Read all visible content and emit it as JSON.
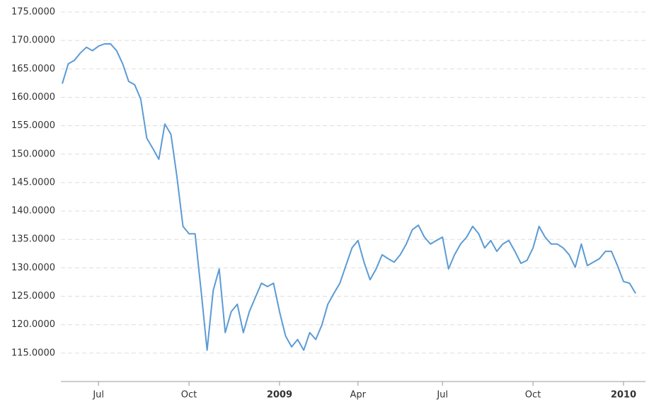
{
  "chart_data": {
    "type": "line",
    "categories": [
      null,
      null,
      null,
      null,
      null,
      null,
      "Jul",
      null,
      null,
      null,
      null,
      null,
      null,
      null,
      null,
      null,
      null,
      null,
      null,
      null,
      null,
      "Oct",
      null,
      null,
      null,
      null,
      null,
      null,
      null,
      null,
      null,
      null,
      null,
      null,
      null,
      null,
      "2009",
      null,
      null,
      null,
      null,
      null,
      null,
      null,
      null,
      null,
      null,
      null,
      null,
      "Apr",
      null,
      null,
      null,
      null,
      null,
      null,
      null,
      null,
      null,
      null,
      null,
      null,
      null,
      "Jul",
      null,
      null,
      null,
      null,
      null,
      null,
      null,
      null,
      null,
      null,
      null,
      null,
      null,
      null,
      "Oct",
      null,
      null,
      null,
      null,
      null,
      null,
      null,
      null,
      null,
      null,
      null,
      null,
      null,
      null,
      "2010",
      null,
      null
    ],
    "series": [
      {
        "color": "#5b9bd5",
        "values": [
          162.4,
          165.9,
          166.5,
          167.8,
          168.8,
          168.2,
          169,
          169.4,
          169.4,
          168.2,
          165.9,
          162.8,
          162.2,
          159.7,
          152.8,
          151,
          149.1,
          155.3,
          153.5,
          146,
          137.3,
          136,
          136,
          126,
          115.5,
          126,
          129.8,
          118.6,
          122.3,
          123.6,
          118.6,
          122.3,
          124.8,
          127.3,
          126.7,
          127.3,
          122.3,
          118,
          116.1,
          117.4,
          115.5,
          118.6,
          117.4,
          119.9,
          123.6,
          125.5,
          127.3,
          130.4,
          133.5,
          134.8,
          131,
          127.9,
          129.8,
          132.3,
          131.6,
          131,
          132.3,
          134.2,
          136.7,
          137.5,
          135.4,
          134.2,
          134.8,
          135.4,
          129.8,
          132.3,
          134.2,
          135.4,
          137.3,
          136,
          133.5,
          134.8,
          132.9,
          134.2,
          134.8,
          132.9,
          130.8,
          131.3,
          133.5,
          137.3,
          135.4,
          134.2,
          134.2,
          133.5,
          132.3,
          130.1,
          134.2,
          130.4,
          131,
          131.6,
          132.9,
          132.9,
          130.4,
          127.6,
          127.3,
          125.5
        ]
      }
    ],
    "ylim": [
      110,
      175
    ],
    "yticks": [
      {
        "value": 115,
        "label": "115.0000"
      },
      {
        "value": 120,
        "label": "120.0000"
      },
      {
        "value": 125,
        "label": "125.0000"
      },
      {
        "value": 130,
        "label": "130.0000"
      },
      {
        "value": 135,
        "label": "135.0000"
      },
      {
        "value": 140,
        "label": "140.0000"
      },
      {
        "value": 145,
        "label": "145.0000"
      },
      {
        "value": 150,
        "label": "150.0000"
      },
      {
        "value": 155,
        "label": "155.0000"
      },
      {
        "value": 160,
        "label": "160.0000"
      },
      {
        "value": 165,
        "label": "165.0000"
      },
      {
        "value": 170,
        "label": "170.0000"
      },
      {
        "value": 175,
        "label": "175.0000"
      }
    ],
    "grid": true
  }
}
